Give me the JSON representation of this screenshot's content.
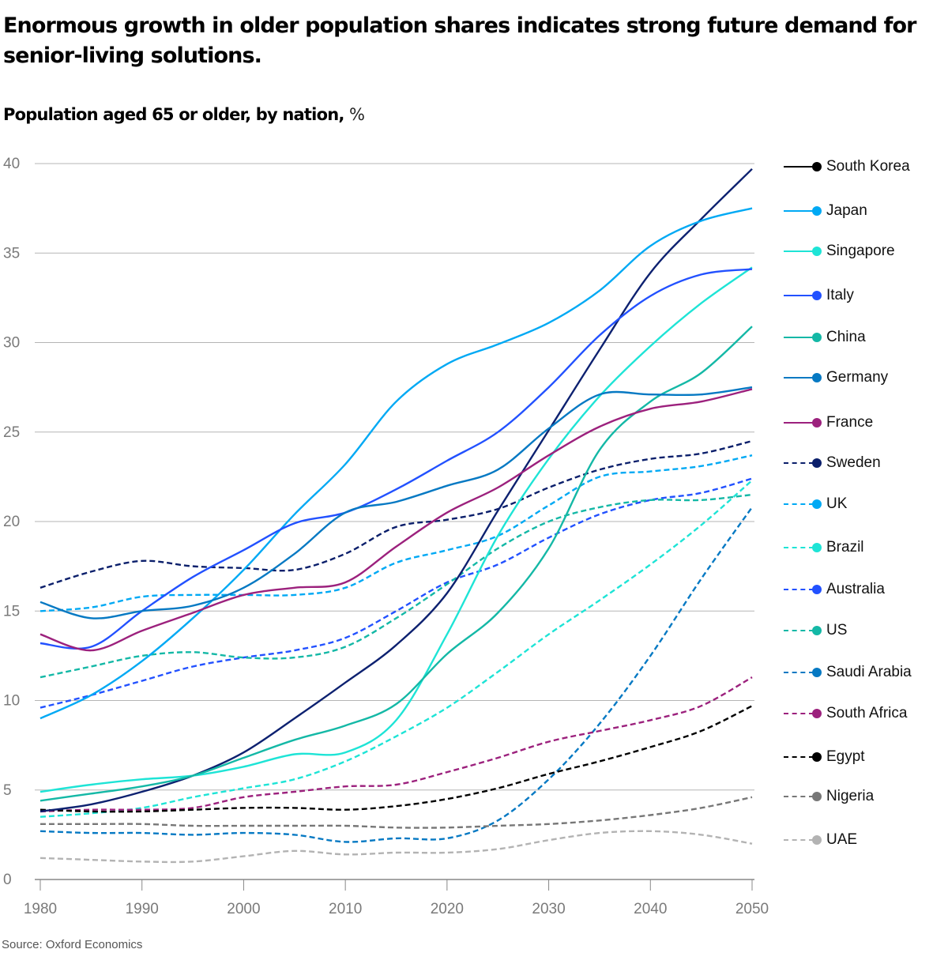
{
  "header": {
    "title": "Enormous growth in older population shares indicates strong future demand for senior-living solutions.",
    "subtitle": "Population aged 65 or older, by nation,",
    "subtitle_unit": "%"
  },
  "footer": {
    "source": "Source: Oxford Economics"
  },
  "chart_data": {
    "type": "line",
    "title": "Population aged 65 or older, by nation, %",
    "xlabel": "",
    "ylabel": "%",
    "xlim": [
      1980,
      2050
    ],
    "ylim": [
      0,
      40
    ],
    "grid": true,
    "legend_position": "right",
    "x_ticks": [
      1980,
      1990,
      2000,
      2010,
      2020,
      2030,
      2040,
      2050
    ],
    "y_ticks": [
      0,
      5,
      10,
      15,
      20,
      25,
      30,
      35,
      40
    ],
    "x": [
      1980,
      1985,
      1990,
      1995,
      2000,
      2005,
      2010,
      2015,
      2020,
      2025,
      2030,
      2035,
      2040,
      2045,
      2050
    ],
    "series": [
      {
        "name": "South Korea",
        "style": "solid",
        "color": "#0d2170",
        "legend_color": "#000000",
        "values": [
          3.8,
          4.2,
          4.9,
          5.8,
          7.1,
          9.0,
          11.0,
          13.1,
          16.0,
          20.6,
          25.1,
          29.6,
          33.9,
          36.9,
          39.7
        ]
      },
      {
        "name": "Japan",
        "style": "solid",
        "color": "#00a9f4",
        "values": [
          9.0,
          10.3,
          12.2,
          14.6,
          17.3,
          20.4,
          23.2,
          26.7,
          28.8,
          29.9,
          31.1,
          32.9,
          35.4,
          36.8,
          37.5
        ]
      },
      {
        "name": "Singapore",
        "style": "solid",
        "color": "#1ee4d6",
        "values": [
          4.9,
          5.3,
          5.6,
          5.8,
          6.3,
          7.0,
          7.1,
          8.9,
          13.7,
          19.2,
          23.5,
          27.0,
          29.8,
          32.2,
          34.2
        ]
      },
      {
        "name": "Italy",
        "style": "solid",
        "color": "#2251ff",
        "values": [
          13.2,
          13.0,
          15.0,
          16.9,
          18.4,
          19.9,
          20.5,
          21.8,
          23.4,
          25.0,
          27.5,
          30.4,
          32.6,
          33.8,
          34.1
        ]
      },
      {
        "name": "China",
        "style": "solid",
        "color": "#14b8a6",
        "values": [
          4.4,
          4.8,
          5.2,
          5.8,
          6.8,
          7.8,
          8.6,
          9.8,
          12.6,
          14.9,
          18.5,
          24.0,
          26.7,
          28.3,
          30.9
        ]
      },
      {
        "name": "Germany",
        "style": "solid",
        "color": "#0679c3",
        "values": [
          15.5,
          14.6,
          15.0,
          15.3,
          16.3,
          18.2,
          20.5,
          21.1,
          22.0,
          22.9,
          25.2,
          27.1,
          27.1,
          27.1,
          27.5
        ]
      },
      {
        "name": "France",
        "style": "solid",
        "color": "#9c217d",
        "values": [
          13.7,
          12.8,
          13.9,
          14.9,
          15.9,
          16.3,
          16.6,
          18.6,
          20.5,
          21.9,
          23.7,
          25.3,
          26.3,
          26.7,
          27.4
        ]
      },
      {
        "name": "Sweden",
        "style": "dashed",
        "color": "#0b1f6b",
        "values": [
          16.3,
          17.2,
          17.8,
          17.5,
          17.4,
          17.3,
          18.2,
          19.7,
          20.1,
          20.7,
          21.9,
          22.9,
          23.5,
          23.8,
          24.5
        ]
      },
      {
        "name": "UK",
        "style": "dashed",
        "color": "#00a9f4",
        "values": [
          15.0,
          15.2,
          15.8,
          15.9,
          15.9,
          15.9,
          16.3,
          17.7,
          18.4,
          19.2,
          20.9,
          22.5,
          22.8,
          23.1,
          23.7
        ]
      },
      {
        "name": "Brazil",
        "style": "dashed",
        "color": "#1ee4d6",
        "values": [
          3.5,
          3.7,
          4.0,
          4.6,
          5.1,
          5.6,
          6.6,
          8.0,
          9.6,
          11.6,
          13.7,
          15.6,
          17.6,
          19.8,
          22.3
        ]
      },
      {
        "name": "Australia",
        "style": "dashed",
        "color": "#2251ff",
        "values": [
          9.6,
          10.3,
          11.1,
          11.9,
          12.4,
          12.8,
          13.5,
          15.0,
          16.6,
          17.6,
          19.1,
          20.4,
          21.2,
          21.6,
          22.4
        ]
      },
      {
        "name": "US",
        "style": "dashed",
        "color": "#14b8a6",
        "values": [
          11.3,
          11.9,
          12.5,
          12.7,
          12.4,
          12.4,
          13.0,
          14.6,
          16.5,
          18.5,
          20.0,
          20.8,
          21.2,
          21.2,
          21.5
        ]
      },
      {
        "name": "Saudi Arabia",
        "style": "dashed",
        "color": "#0679c3",
        "values": [
          2.7,
          2.6,
          2.6,
          2.5,
          2.6,
          2.5,
          2.1,
          2.3,
          2.3,
          3.3,
          5.6,
          8.7,
          12.5,
          16.8,
          20.8
        ]
      },
      {
        "name": "South Africa",
        "style": "dashed",
        "color": "#9c217d",
        "values": [
          3.8,
          3.9,
          3.9,
          4.0,
          4.6,
          4.9,
          5.2,
          5.3,
          6.0,
          6.8,
          7.7,
          8.3,
          8.9,
          9.7,
          11.3
        ]
      },
      {
        "name": "Egypt",
        "style": "dashed",
        "color": "#000000",
        "values": [
          3.9,
          3.8,
          3.8,
          3.9,
          4.0,
          4.0,
          3.9,
          4.1,
          4.5,
          5.1,
          5.9,
          6.6,
          7.4,
          8.3,
          9.7
        ]
      },
      {
        "name": "Nigeria",
        "style": "dashed",
        "color": "#777777",
        "values": [
          3.1,
          3.1,
          3.1,
          3.0,
          3.0,
          3.0,
          3.0,
          2.9,
          2.9,
          3.0,
          3.1,
          3.3,
          3.6,
          4.0,
          4.6
        ]
      },
      {
        "name": "UAE",
        "style": "dashed",
        "color": "#b3b3b3",
        "values": [
          1.2,
          1.1,
          1.0,
          1.0,
          1.3,
          1.6,
          1.4,
          1.5,
          1.5,
          1.7,
          2.2,
          2.6,
          2.7,
          2.5,
          2.0
        ]
      }
    ]
  }
}
